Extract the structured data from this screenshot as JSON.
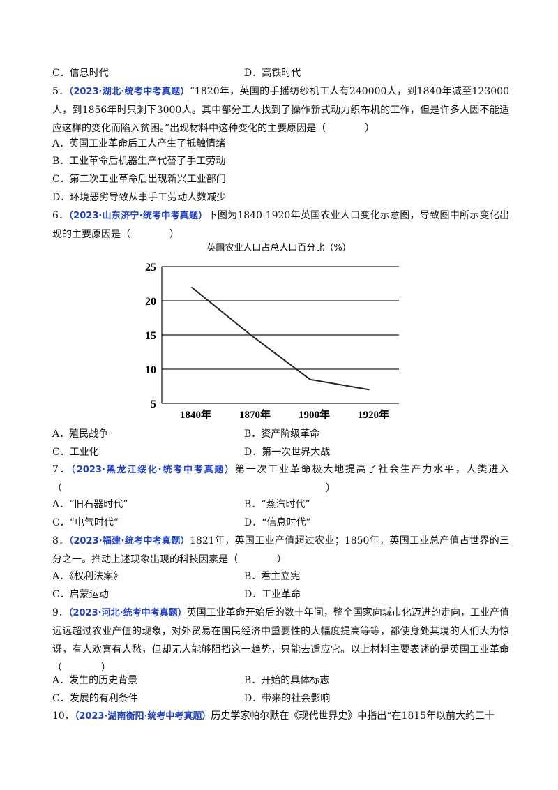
{
  "questions": [
    {
      "options": [
        "C．信息时代",
        "D．高铁时代"
      ]
    },
    {
      "number": "5．",
      "source": "（2023·湖北·统考中考真题）",
      "stem": "“1820年，英国的手摇纺纱机工人有240000人，到1840年减至123000人，到1856年时只剩下3000人。其中部分工人找到了操作新式动力织布机的工作，但是许多人因不能适应这样的变化而陷入贫困。”出现材料中这种变化的主要原因是（　　　　）",
      "options": [
        "A．英国工业革命后工人产生了抵触情绪",
        "B．工业革命后机器生产代替了手工劳动",
        "C．第二次工业革命后出现新兴工业部门",
        "D．环境恶劣导致从事手工劳动人数减少"
      ]
    },
    {
      "number": "6．",
      "source": "（2023·山东济宁·统考中考真题）",
      "stem": "下图为1840-1920年英国农业人口变化示意图，导致图中所示变化出现的主要原因是（　　　　）",
      "options": [
        "A．殖民战争",
        "B．资产阶级革命",
        "C．工业化",
        "D．第一次世界大战"
      ]
    },
    {
      "number": "7．",
      "source": "（2023·黑龙江绥化·统考中考真题）",
      "stem": "第一次工业革命极大地提高了社会生产力水平，人类进入（　　　　　　　　　　　　　　　　　　　　　　　　　　　）",
      "options": [
        "A．“旧石器时代”",
        "B．“蒸汽时代”",
        "C．“电气时代”",
        "D．“信息时代”"
      ]
    },
    {
      "number": "8．",
      "source": "（2023·福建·统考中考真题）",
      "stem": "1821年，英国工业产值超过农业；1850年，英国工业总产值占世界的三分之一。推动上述现象出现的科技因素是（　　　　）",
      "options": [
        "A．《权利法案》",
        "B．君主立宪",
        "C．启蒙运动",
        "D．工业革命"
      ]
    },
    {
      "number": "9．",
      "source": "（2023·河北·统考中考真题）",
      "stem": "英国工业革命开始后的数十年间，整个国家向城市化迈进的走向，工业产值远远超过农业产值的现象，对外贸易在国民经济中重要性的大幅度提高等等，都使身处其境的人们大为惊讶，有人欢喜有人愁，但却无人能够阻挡这一趋势，只能去适应它。以上材料主要表述的是英国工业革命（　　　　）",
      "options": [
        "A．发生的历史背景",
        "B．开始的具体标志",
        "C．发展的有利条件",
        "D．带来的社会影响"
      ]
    },
    {
      "number": "10．",
      "source": "（2023·湖南衡阳·统考中考真题）",
      "stem": "历史学家帕尔默在《现代世界史》中指出“在1815年以前大约三十"
    }
  ],
  "chart_data": {
    "type": "line",
    "title": "英国农业人口占总人口百分比（%）",
    "categories": [
      "1840年",
      "1870年",
      "1900年",
      "1920年"
    ],
    "series": [
      {
        "values": [
          22,
          15,
          8.5,
          7
        ],
        "color": "#222222"
      }
    ],
    "ylim": [
      5,
      25
    ],
    "yticks": [
      5,
      10,
      15,
      20,
      25
    ],
    "grid": true
  }
}
